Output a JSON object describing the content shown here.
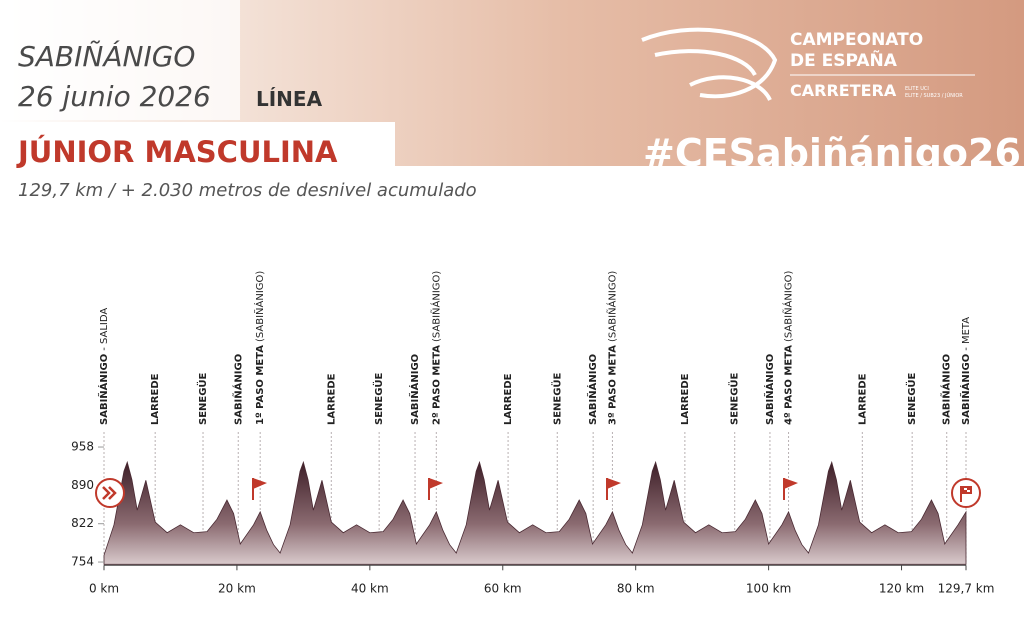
{
  "header": {
    "place": "SABIÑÁNIGO",
    "date": "26 junio 2026",
    "format": "LÍNEA",
    "category": "JÚNIOR MASCULINA",
    "details": "129,7 km / + 2.030 metros de desnivel acumulado",
    "logo": {
      "line1": "CAMPEONATO",
      "line2": "DE ESPAÑA",
      "line3": "CARRETERA",
      "small1": "ELITE UCI",
      "small2": "ELITE / SUB23 / JÚNIOR"
    },
    "hashtag": "#CESabiñánigo26"
  },
  "chart_data": {
    "type": "area",
    "color": "#4a2a33",
    "xlim": [
      0,
      129.7
    ],
    "ylim": [
      750,
      960
    ],
    "xticks": [
      {
        "value": 0,
        "label": "0 km"
      },
      {
        "value": 20,
        "label": "20 km"
      },
      {
        "value": 40,
        "label": "40 km"
      },
      {
        "value": 60,
        "label": "60 km"
      },
      {
        "value": 80,
        "label": "80 km"
      },
      {
        "value": 100,
        "label": "100 km"
      },
      {
        "value": 120,
        "label": "120 km"
      },
      {
        "value": 129.7,
        "label": "129,7 km"
      }
    ],
    "yticks": [
      754,
      822,
      890,
      958
    ],
    "x": [
      0,
      1.5,
      3,
      3.5,
      4.2,
      5,
      5.6,
      6.3,
      7.7,
      9.5,
      11.5,
      13.5,
      15.5,
      17,
      18.5,
      19.5,
      20.5,
      22.5,
      23.5,
      24.5,
      25.5,
      26.5,
      28,
      29.5,
      30,
      30.7,
      31.5,
      32.1,
      32.8,
      34.2,
      36,
      38,
      40,
      42,
      43.5,
      45,
      46,
      47,
      49,
      50,
      51,
      52,
      53,
      54.5,
      56,
      56.5,
      57.2,
      58,
      58.6,
      59.3,
      60.7,
      62.5,
      64.5,
      66.5,
      68.5,
      70,
      71.5,
      72.5,
      73.5,
      75.5,
      76.5,
      77.5,
      78.5,
      79.5,
      81,
      82.5,
      83,
      83.7,
      84.5,
      85.1,
      85.8,
      87.2,
      89,
      91,
      93,
      95,
      96.5,
      98,
      99,
      100,
      102,
      103,
      104,
      105,
      106,
      107.5,
      109,
      109.5,
      110.2,
      111,
      111.6,
      112.3,
      113.7,
      115.5,
      117.5,
      119.5,
      121.5,
      123,
      124.5,
      125.5,
      126.5,
      128.5,
      129.7
    ],
    "values": [
      766,
      820,
      915,
      931,
      900,
      846,
      870,
      899,
      825,
      806,
      820,
      806,
      808,
      830,
      864,
      840,
      786,
      820,
      843,
      810,
      785,
      770,
      820,
      915,
      931,
      900,
      846,
      870,
      899,
      825,
      806,
      820,
      806,
      808,
      830,
      864,
      840,
      786,
      820,
      843,
      810,
      785,
      770,
      820,
      915,
      931,
      900,
      846,
      870,
      899,
      825,
      806,
      820,
      806,
      808,
      830,
      864,
      840,
      786,
      820,
      843,
      810,
      785,
      770,
      820,
      915,
      931,
      900,
      846,
      870,
      899,
      825,
      806,
      820,
      806,
      808,
      830,
      864,
      840,
      786,
      820,
      843,
      810,
      785,
      770,
      820,
      915,
      931,
      900,
      846,
      870,
      899,
      825,
      806,
      820,
      806,
      808,
      830,
      864,
      840,
      786,
      820,
      843
    ],
    "waypoints": [
      {
        "km": 0,
        "name": "SABIÑÁNIGO",
        "note": "- SALIDA"
      },
      {
        "km": 7.7,
        "name": "LARREDE"
      },
      {
        "km": 14.9,
        "name": "SENEGÜE"
      },
      {
        "km": 20.2,
        "name": "SABIÑÁNIGO"
      },
      {
        "km": 23.5,
        "name": "1º PASO META",
        "note": "(SABIÑÁNIGO)"
      },
      {
        "km": 34.2,
        "name": "LARREDE"
      },
      {
        "km": 41.4,
        "name": "SENEGÜE"
      },
      {
        "km": 46.8,
        "name": "SABIÑÁNIGO"
      },
      {
        "km": 50,
        "name": "2º PASO META",
        "note": "(SABIÑÁNIGO)"
      },
      {
        "km": 60.8,
        "name": "LARREDE"
      },
      {
        "km": 68.2,
        "name": "SENEGÜE"
      },
      {
        "km": 73.6,
        "name": "SABIÑÁNIGO"
      },
      {
        "km": 76.5,
        "name": "3º PASO META",
        "note": "(SABIÑÁNIGO)"
      },
      {
        "km": 87.4,
        "name": "LARREDE"
      },
      {
        "km": 94.9,
        "name": "SENEGÜE"
      },
      {
        "km": 100.2,
        "name": "SABIÑÁNIGO"
      },
      {
        "km": 103,
        "name": "4º PASO META",
        "note": "(SABIÑÁNIGO)"
      },
      {
        "km": 114.1,
        "name": "LARREDE"
      },
      {
        "km": 121.6,
        "name": "SENEGÜE"
      },
      {
        "km": 126.8,
        "name": "SABIÑÁNIGO"
      },
      {
        "km": 129.7,
        "name": "SABIÑÁNIGO",
        "note": "- META"
      }
    ]
  }
}
